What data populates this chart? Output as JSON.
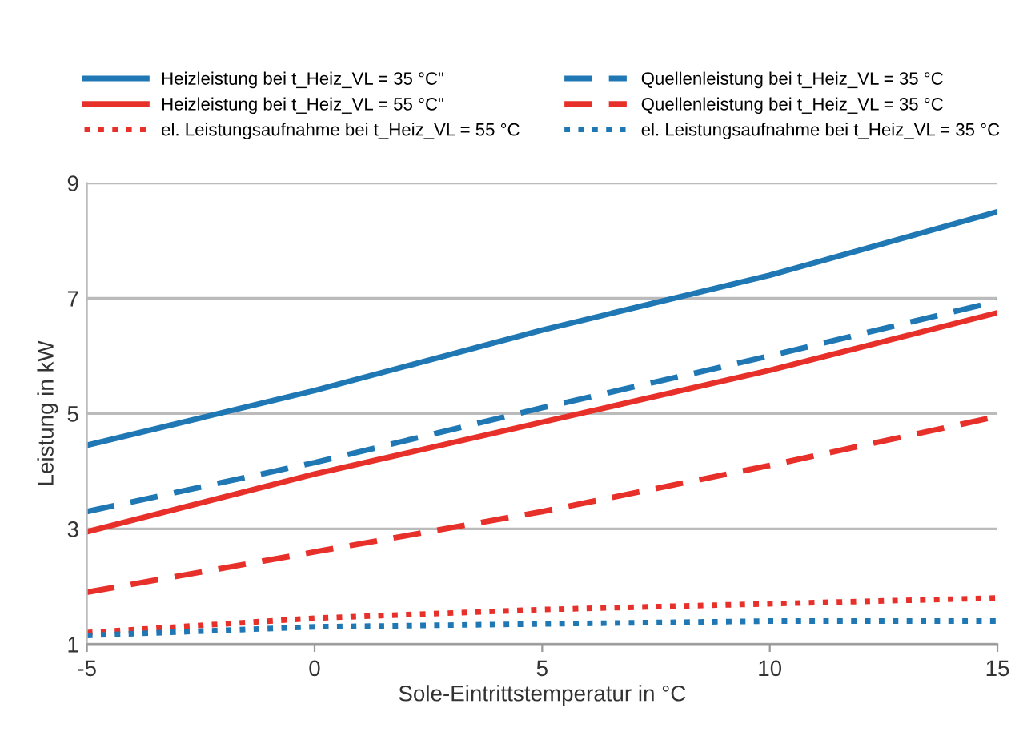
{
  "chart_data": {
    "type": "line",
    "xlabel": "Sole-Eintrittstemperatur in °C",
    "ylabel": "Leistung in kW",
    "x": [
      -5,
      0,
      5,
      10,
      15
    ],
    "series": [
      {
        "name": "Heizleistung bei t_Heiz_VL = 35 °C\"",
        "color": "#1f78b4",
        "line_style": "solid",
        "values": [
          4.45,
          5.4,
          6.45,
          7.4,
          8.5
        ]
      },
      {
        "name": "Heizleistung bei t_Heiz_VL = 55 °C\"",
        "color": "#e8302a",
        "line_style": "solid",
        "values": [
          2.95,
          3.95,
          4.85,
          5.75,
          6.75
        ]
      },
      {
        "name": "el. Leistungsaufnahme bei t_Heiz_VL = 55 °C",
        "color": "#e8302a",
        "line_style": "dotted",
        "values": [
          1.2,
          1.45,
          1.6,
          1.7,
          1.8
        ]
      },
      {
        "name": "Quellenleistung bei t_Heiz_VL = 35 °C",
        "color": "#1f78b4",
        "line_style": "dashed",
        "values": [
          3.3,
          4.15,
          5.1,
          6.0,
          6.95
        ]
      },
      {
        "name": "Quellenleistung bei t_Heiz_VL = 35 °C",
        "color": "#e8302a",
        "line_style": "dashed",
        "values": [
          1.9,
          2.6,
          3.3,
          4.1,
          4.95
        ]
      },
      {
        "name": "el. Leistungsaufnahme bei t_Heiz_VL = 35 °C",
        "color": "#1f78b4",
        "line_style": "dotted",
        "values": [
          1.15,
          1.3,
          1.35,
          1.4,
          1.4
        ]
      }
    ],
    "xlim": [
      -5,
      15
    ],
    "xticks": [
      -5,
      0,
      5,
      10,
      15
    ],
    "ylim": [
      1,
      9
    ],
    "yticks": [
      1,
      3,
      5,
      7,
      9
    ],
    "grid": "y",
    "legend": "top",
    "marker": "none"
  }
}
